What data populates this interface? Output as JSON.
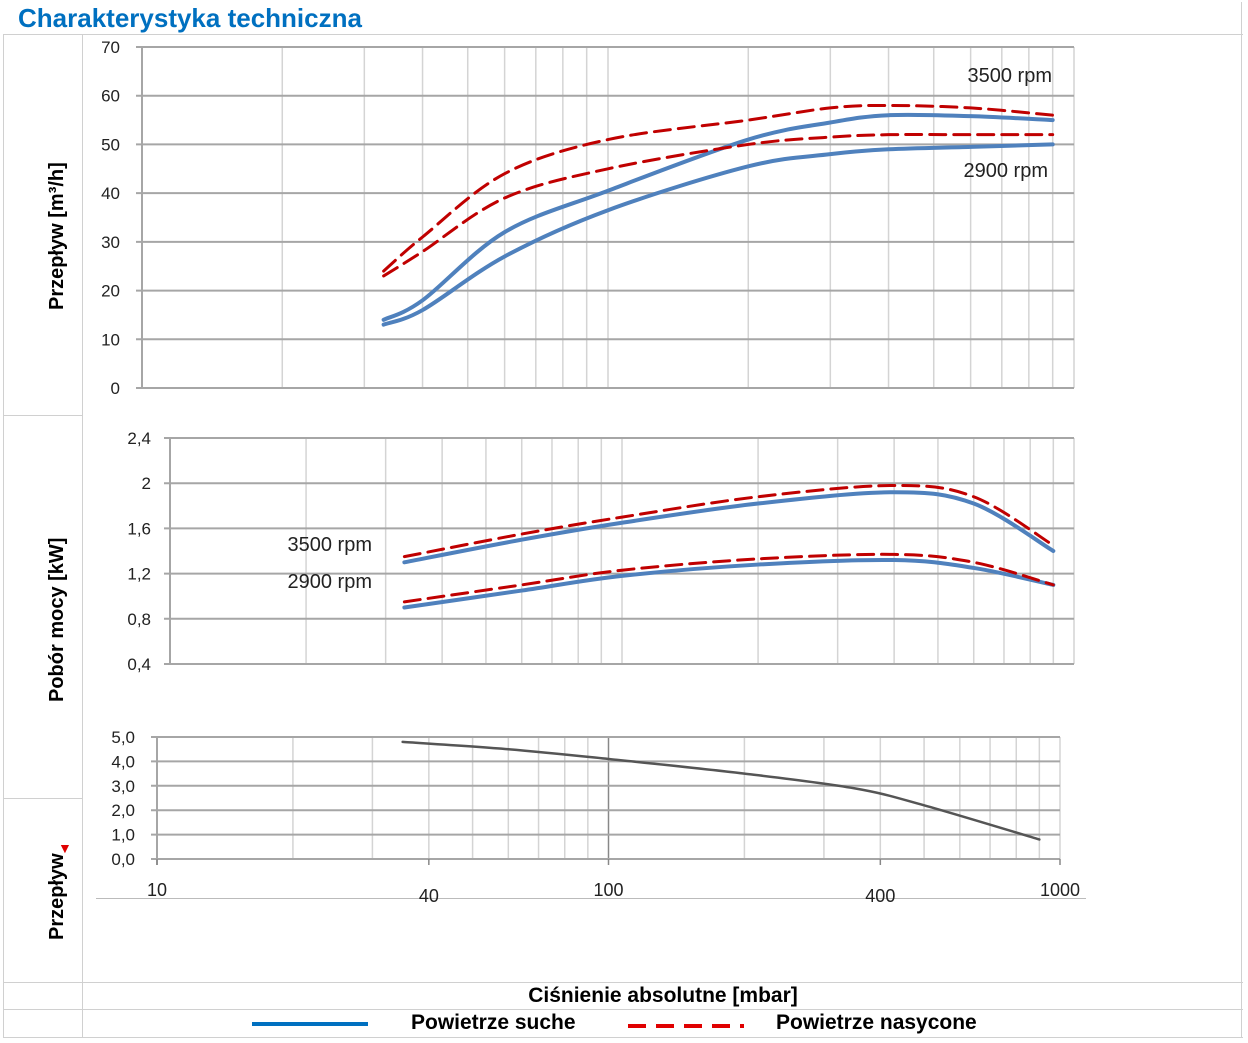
{
  "title": "Charakterystyka techniczna",
  "labels": {
    "flow_axis": "Przepływ [m³/h]",
    "power_axis": "Pobór mocy [kW]",
    "bottom_axis": "Przepływ",
    "x_axis": "Ciśnienie absolutne [mbar]"
  },
  "legend": {
    "dry": "Powietrze suche",
    "wet": "Powietrze nasycone"
  },
  "colors": {
    "dry": "#4f81bd",
    "wet": "#c00000",
    "bottom": "#555555",
    "title": "#0070c0"
  },
  "chart_data": [
    {
      "type": "line",
      "title": "",
      "ylabel": "Przepływ [m³/h]",
      "xlabel": "Ciśnienie absolutne [mbar]",
      "xscale": "log",
      "xlim": [
        10,
        1000
      ],
      "ylim": [
        0,
        70
      ],
      "yticks": [
        "0",
        "10",
        "20",
        "30",
        "40",
        "50",
        "60",
        "70"
      ],
      "ytick_values": [
        0,
        10,
        20,
        30,
        40,
        50,
        60,
        70
      ],
      "annotations": [
        "3500 rpm",
        "2900 rpm"
      ],
      "x": [
        33,
        40,
        60,
        100,
        200,
        300,
        400,
        600,
        900
      ],
      "series": [
        {
          "name": "Powietrze suche 3500 rpm",
          "style": "dry",
          "values": [
            14,
            18,
            32,
            40.5,
            51,
            54.5,
            56,
            55.8,
            55
          ]
        },
        {
          "name": "Powietrze suche 2900 rpm",
          "style": "dry",
          "values": [
            13,
            16,
            27,
            36.5,
            45.5,
            48,
            49,
            49.5,
            50
          ]
        },
        {
          "name": "Powietrze nasycone 3500 rpm",
          "style": "wet",
          "values": [
            24,
            31,
            44,
            51,
            55,
            57.5,
            58,
            57.5,
            56
          ]
        },
        {
          "name": "Powietrze nasycone 2900 rpm",
          "style": "wet",
          "values": [
            23,
            28,
            39,
            45,
            50,
            51.5,
            52,
            52,
            52
          ]
        }
      ]
    },
    {
      "type": "line",
      "title": "",
      "ylabel": "Pobór mocy [kW]",
      "xscale": "log",
      "xlim": [
        10,
        1000
      ],
      "ylim": [
        0.4,
        2.4
      ],
      "yticks": [
        "0,4",
        "0,8",
        "1,2",
        "1,6",
        "2",
        "2,4"
      ],
      "ytick_values": [
        0.4,
        0.8,
        1.2,
        1.6,
        2.0,
        2.4
      ],
      "annotations": [
        "3500 rpm",
        "2900 rpm"
      ],
      "x": [
        33,
        60,
        100,
        200,
        400,
        600,
        900
      ],
      "series": [
        {
          "name": "Powietrze suche 3500 rpm",
          "style": "dry",
          "values": [
            1.3,
            1.5,
            1.65,
            1.82,
            1.92,
            1.82,
            1.4
          ]
        },
        {
          "name": "Powietrze nasycone 3500 rpm",
          "style": "wet",
          "values": [
            1.35,
            1.55,
            1.7,
            1.88,
            1.98,
            1.88,
            1.45
          ]
        },
        {
          "name": "Powietrze suche 2900 rpm",
          "style": "dry",
          "values": [
            0.9,
            1.05,
            1.18,
            1.28,
            1.32,
            1.25,
            1.1
          ]
        },
        {
          "name": "Powietrze nasycone 2900 rpm",
          "style": "wet",
          "values": [
            0.95,
            1.1,
            1.23,
            1.33,
            1.37,
            1.3,
            1.1
          ]
        }
      ]
    },
    {
      "type": "line",
      "title": "",
      "ylabel": "Przepływ",
      "xscale": "log",
      "xlim": [
        10,
        1000
      ],
      "ylim": [
        0,
        5
      ],
      "yticks": [
        "0,0",
        "1,0",
        "2,0",
        "3,0",
        "4,0",
        "5,0"
      ],
      "ytick_values": [
        0,
        1,
        2,
        3,
        4,
        5
      ],
      "xticks": [
        "10",
        "40",
        "100",
        "400",
        "1000"
      ],
      "xtick_values": [
        10,
        40,
        100,
        400,
        1000
      ],
      "x": [
        35,
        60,
        100,
        200,
        350,
        500,
        900
      ],
      "series": [
        {
          "name": "Przepływ",
          "style": "bottom",
          "values": [
            4.8,
            4.5,
            4.1,
            3.5,
            2.9,
            2.2,
            0.8
          ]
        }
      ]
    }
  ]
}
